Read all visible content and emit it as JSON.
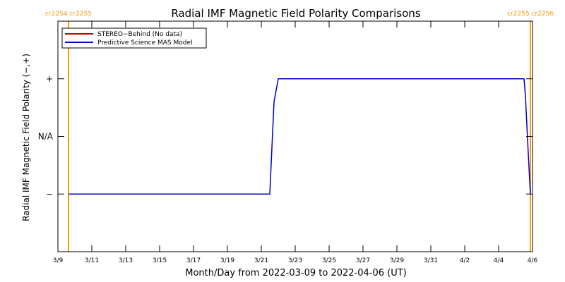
{
  "chart_data": {
    "type": "line",
    "title": "Radial IMF Magnetic Field Polarity Comparisons",
    "xlabel": "Month/Day from 2022-03-09 to 2022-04-06 (UT)",
    "ylabel": "Radial IMF Magnetic Field Polarity (−,+)",
    "x_tick_labels": [
      "3/9",
      "3/11",
      "3/13",
      "3/15",
      "3/17",
      "3/19",
      "3/21",
      "3/23",
      "3/25",
      "3/27",
      "3/29",
      "3/31",
      "4/2",
      "4/4",
      "4/6"
    ],
    "x_tick_dates": [
      "2022-03-09",
      "2022-03-11",
      "2022-03-13",
      "2022-03-15",
      "2022-03-17",
      "2022-03-19",
      "2022-03-21",
      "2022-03-23",
      "2022-03-25",
      "2022-03-27",
      "2022-03-29",
      "2022-03-31",
      "2022-04-02",
      "2022-04-04",
      "2022-04-06"
    ],
    "xlim": [
      "2022-03-09",
      "2022-04-06"
    ],
    "y_tick_labels": [
      "−",
      "N/A",
      "+"
    ],
    "y_tick_values": [
      -1,
      0,
      1
    ],
    "ylim": [
      -2,
      2
    ],
    "series": [
      {
        "name": "STEREO−Behind (No data)",
        "color": "#c00000",
        "x": [],
        "y": []
      },
      {
        "name": "Predictive Science MAS Model",
        "color": "#0000cc",
        "x": [
          "2022-03-09 15:00",
          "2022-03-21 12:00",
          "2022-03-21 15:00",
          "2022-03-21 18:00",
          "2022-03-22 00:00",
          "2022-04-05 12:00",
          "2022-04-05 14:00",
          "2022-04-05 18:00",
          "2022-04-05 21:00"
        ],
        "y": [
          -1,
          -1,
          -0.2,
          0.6,
          1,
          1,
          0.7,
          -0.3,
          -1
        ]
      }
    ],
    "carrington_markers": [
      {
        "date": "2022-03-09 15:00",
        "labels": [
          "cr2254",
          "cr2255"
        ],
        "color": "#ff9900"
      },
      {
        "date": "2022-04-05 21:00",
        "labels": [
          "cr2255",
          "cr2256"
        ],
        "color": "#ff9900"
      }
    ],
    "legend_position": "top-left",
    "grid": false
  }
}
